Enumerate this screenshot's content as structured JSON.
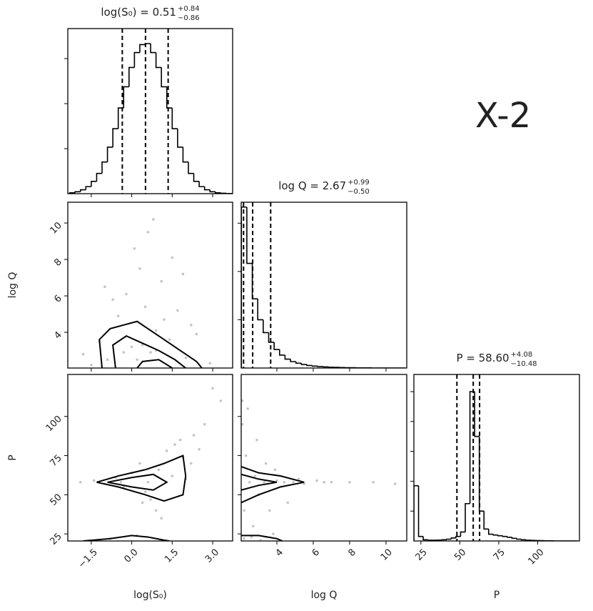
{
  "annotation": "X-2",
  "chart_data": [
    {
      "type": "histogram",
      "title": "log(S₀) = 0.51",
      "title_plus": "+0.84",
      "title_minus": "−0.86",
      "bins": [
        -2.3,
        -2.1,
        -1.9,
        -1.7,
        -1.5,
        -1.3,
        -1.1,
        -0.9,
        -0.7,
        -0.5,
        -0.3,
        -0.1,
        0.1,
        0.3,
        0.5,
        0.7,
        0.9,
        1.1,
        1.3,
        1.5,
        1.7,
        1.9,
        2.1,
        2.3,
        2.5,
        2.7,
        2.9,
        3.1,
        3.3,
        3.5,
        3.7
      ],
      "counts": [
        6,
        13,
        26,
        47,
        82,
        135,
        211,
        310,
        433,
        571,
        712,
        841,
        940,
        993,
        1000,
        940,
        841,
        712,
        571,
        433,
        310,
        211,
        135,
        82,
        47,
        26,
        13,
        6,
        3,
        1
      ],
      "quantiles": [
        -0.35,
        0.51,
        1.35
      ],
      "xlim": [
        -2.37,
        3.74
      ],
      "xticks": [
        -1.5,
        0,
        1.5,
        3
      ],
      "xtick_labels": false,
      "ylim": [
        0,
        1100
      ],
      "yticks": [
        300,
        600,
        900
      ],
      "ytick_labels": false
    },
    {
      "type": "scatter",
      "x": [
        -1.8,
        -1.2,
        -0.9,
        -0.5,
        -0.2,
        0.0,
        0.3,
        0.5,
        0.7,
        0.9,
        1.1,
        1.4,
        1.7,
        2.0,
        2.4,
        2.9,
        -1.5,
        -0.7,
        0.1,
        0.6,
        1.2,
        1.9,
        -0.3,
        0.8,
        0.4,
        -1.0,
        1.5,
        2.2,
        0.2,
        0.9
      ],
      "y": [
        2.8,
        3.5,
        2.5,
        4.9,
        6.1,
        3.2,
        7.5,
        5.4,
        2.9,
        4.1,
        6.8,
        3.6,
        5.2,
        2.6,
        3.9,
        2.3,
        2.2,
        5.8,
        8.6,
        9.5,
        4.7,
        7.2,
        2.9,
        10.2,
        3.3,
        6.5,
        8.1,
        4.4,
        2.5,
        3.0
      ],
      "contours": [
        {
          "x": [
            -1.1,
            -1.2,
            -0.8,
            -0.3,
            0.2,
            0.6,
            1.2,
            1.8,
            2.4,
            2.6
          ],
          "y": [
            2.04,
            3.6,
            4.2,
            4.4,
            4.6,
            4.2,
            3.6,
            3.0,
            2.4,
            2.04
          ]
        },
        {
          "x": [
            -0.6,
            -0.7,
            -0.2,
            0.4,
            1.0,
            1.6,
            2.0
          ],
          "y": [
            2.04,
            3.3,
            3.8,
            3.4,
            3.0,
            2.5,
            2.04
          ]
        },
        {
          "x": [
            0.2,
            0.4,
            1.0,
            1.5
          ],
          "y": [
            2.04,
            2.4,
            2.5,
            2.04
          ]
        }
      ],
      "xlim": [
        -2.37,
        3.74
      ],
      "xticks": [
        -1.5,
        0,
        1.5,
        3
      ],
      "xtick_labels": false,
      "ylim": [
        2.04,
        11.14
      ],
      "yticks": [
        4,
        6,
        8,
        10
      ],
      "ytick_labels": true,
      "ylabel": "log Q"
    },
    {
      "type": "histogram",
      "title": "log Q = 2.67",
      "title_plus": "+0.99",
      "title_minus": "−0.50",
      "bins": [
        2.05,
        2.35,
        2.65,
        2.95,
        3.25,
        3.55,
        3.85,
        4.15,
        4.45,
        4.75,
        5.05,
        5.35,
        5.65,
        5.95,
        6.25,
        6.55,
        6.85,
        7.15,
        7.45,
        7.75,
        8.05,
        8.35,
        8.65,
        8.95,
        9.25,
        9.55,
        9.85,
        10.15,
        10.45,
        10.75,
        11.05
      ],
      "counts": [
        1000,
        650,
        430,
        300,
        220,
        160,
        115,
        80,
        55,
        40,
        30,
        22,
        16,
        12,
        9,
        7,
        5,
        4,
        3,
        2,
        2,
        1,
        1,
        1,
        0,
        0,
        0,
        0,
        0,
        0
      ],
      "quantiles": [
        2.17,
        2.67,
        3.66
      ],
      "xlim": [
        2.04,
        11.14
      ],
      "xticks": [
        4,
        6,
        8,
        10
      ],
      "xtick_labels": false,
      "ylim": [
        0,
        1030
      ],
      "yticks": [
        300,
        600,
        900
      ],
      "ytick_labels": false
    },
    {
      "type": "scatter",
      "x": [
        -1.9,
        -1.4,
        -1.0,
        -0.6,
        -0.3,
        0.0,
        0.3,
        0.5,
        0.7,
        1.0,
        1.3,
        1.6,
        1.9,
        2.3,
        2.7,
        3.3,
        -0.8,
        0.2,
        0.9,
        1.5,
        2.0,
        -1.2,
        0.6,
        1.1,
        2.5,
        3.0,
        -0.4,
        0.4,
        1.8,
        2.2
      ],
      "y": [
        58,
        59,
        57,
        61,
        55,
        64,
        70,
        52,
        47,
        66,
        78,
        82,
        74,
        88,
        95,
        110,
        22,
        24,
        40,
        62,
        60,
        21,
        58,
        35,
        79,
        118,
        58,
        45,
        85,
        70
      ],
      "contours": [
        {
          "x": [
            -1.3,
            -0.5,
            0.5,
            1.2,
            1.9,
            2.0,
            1.9,
            1.2,
            0.5,
            -0.5,
            -1.3
          ],
          "y": [
            58,
            62,
            66,
            70,
            75,
            62,
            50,
            46,
            50,
            55,
            58
          ]
        },
        {
          "x": [
            -0.9,
            0.0,
            0.8,
            1.3,
            0.8,
            0.0,
            -0.9
          ],
          "y": [
            58,
            61,
            63,
            58,
            53,
            55,
            58
          ]
        },
        {
          "x": [
            -1.8,
            -0.8,
            0.0,
            0.6,
            1.2,
            1.4
          ],
          "y": [
            20.5,
            22,
            24,
            23,
            21,
            20.5
          ]
        }
      ],
      "xlim": [
        -2.37,
        3.74
      ],
      "xticks": [
        {
          "value": -1.5,
          "label": "−1.5"
        },
        {
          "value": 0,
          "label": "0.0"
        },
        1.5,
        {
          "value": 3,
          "label": "3.0"
        }
      ],
      "xtick_labels": true,
      "xlabel": "log(S₀)",
      "ylim": [
        20.5,
        126.8
      ],
      "yticks": [
        25,
        50,
        75,
        100
      ],
      "ytick_labels": true,
      "ylabel": "P"
    },
    {
      "type": "scatter",
      "x": [
        2.1,
        2.3,
        2.5,
        2.8,
        3.0,
        3.3,
        3.6,
        4.0,
        4.4,
        4.9,
        5.5,
        6.2,
        7.0,
        8.0,
        9.3,
        10.5,
        2.2,
        2.6,
        3.1,
        3.8,
        2.4,
        2.9,
        5.2,
        6.6,
        2.2,
        3.4,
        4.6,
        2.7,
        2.1,
        3.9
      ],
      "y": [
        95,
        75,
        58,
        62,
        50,
        58,
        40,
        59,
        58,
        58,
        57,
        59,
        58,
        58,
        58,
        57,
        22,
        23,
        21,
        25,
        105,
        85,
        60,
        58,
        40,
        70,
        45,
        30,
        110,
        66
      ],
      "contours": [
        {
          "x": [
            2.04,
            3.0,
            4.2,
            5.5,
            4.2,
            3.0,
            2.04
          ],
          "y": [
            68,
            64,
            62,
            58,
            55,
            50,
            45
          ]
        },
        {
          "x": [
            2.04,
            3.0,
            4.0,
            3.0,
            2.04
          ],
          "y": [
            63,
            60,
            58,
            56,
            53
          ]
        },
        {
          "x": [
            2.04,
            3.0,
            4.0,
            4.3
          ],
          "y": [
            24,
            24,
            22,
            20.5
          ]
        }
      ],
      "xlim": [
        2.04,
        11.14
      ],
      "xticks": [
        4,
        6,
        8,
        10
      ],
      "xtick_labels": true,
      "xlabel": "log Q",
      "ylim": [
        20.5,
        126.8
      ],
      "yticks": [
        25,
        50,
        75,
        100
      ],
      "ytick_labels": false
    },
    {
      "type": "histogram",
      "title": "P = 58.60",
      "title_plus": "+4.08",
      "title_minus": "−10.48",
      "bins": [
        20.5,
        23.5,
        26.5,
        29.5,
        32.5,
        35.5,
        38.5,
        41.5,
        44.5,
        47.5,
        50.5,
        53.5,
        56.5,
        59.5,
        62.5,
        65.5,
        68.5,
        71.5,
        74.5,
        77.5,
        80.5,
        83.5,
        86.5,
        89.5,
        92.5,
        95.5,
        98.5,
        101.5,
        104.5,
        107.5,
        110.5,
        113.5,
        116.5,
        119.5,
        122.5,
        125.5
      ],
      "counts": [
        370,
        30,
        8,
        5,
        5,
        6,
        8,
        12,
        20,
        30,
        60,
        250,
        1000,
        700,
        200,
        80,
        45,
        40,
        35,
        30,
        25,
        18,
        12,
        8,
        5,
        4,
        3,
        2,
        1,
        1,
        0,
        0,
        0,
        0,
        0
      ],
      "quantiles": [
        48.12,
        58.6,
        62.68
      ],
      "xlim": [
        20.5,
        126.8
      ],
      "xticks": [
        25,
        50,
        75,
        100
      ],
      "xtick_labels": true,
      "xlabel": "P",
      "ylim": [
        0,
        1115
      ],
      "yticks": [
        200,
        400,
        600,
        800,
        1000
      ],
      "ytick_labels": false
    }
  ]
}
